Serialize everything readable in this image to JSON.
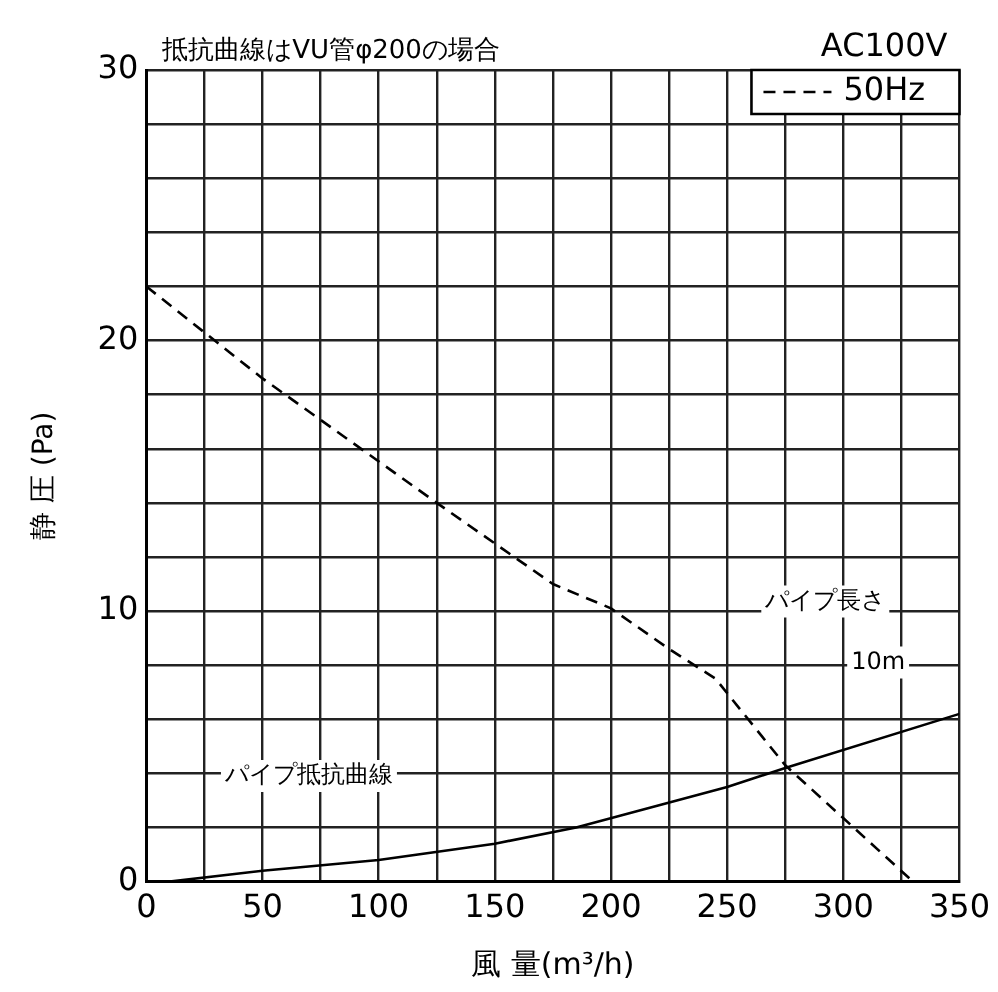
{
  "chart_data": {
    "type": "line",
    "title": "抵抗曲線はVU管φ200の場合",
    "xlabel": "風 量(m³/h)",
    "ylabel": "静 圧 (Pa)",
    "xlim": [
      0,
      350
    ],
    "ylim": [
      0,
      30
    ],
    "xticks": [
      0,
      {
        "value": 25,
        "label": null
      },
      50,
      {
        "value": 75,
        "label": null
      },
      100,
      {
        "value": 125,
        "label": null
      },
      150,
      {
        "value": 175,
        "label": null
      },
      200,
      {
        "value": 225,
        "label": null
      },
      250,
      {
        "value": 275,
        "label": null
      },
      300,
      {
        "value": 325,
        "label": null
      },
      350
    ],
    "yticks": [
      0,
      {
        "value": 2,
        "label": null
      },
      {
        "value": 4,
        "label": null
      },
      {
        "value": 6,
        "label": null
      },
      {
        "value": 8,
        "label": null
      },
      10,
      {
        "value": 12,
        "label": null
      },
      {
        "value": 14,
        "label": null
      },
      {
        "value": 16,
        "label": null
      },
      {
        "value": 18,
        "label": null
      },
      20,
      {
        "value": 22,
        "label": null
      },
      {
        "value": 24,
        "label": null
      },
      {
        "value": 26,
        "label": null
      },
      {
        "value": 28,
        "label": null
      },
      30
    ],
    "grid": true,
    "legend": "top right",
    "marker": "none",
    "series": [
      {
        "name": "50Hz",
        "color": "#000000",
        "line_style": "dashed",
        "x": [
          0,
          50,
          125,
          175,
          200,
          225,
          245,
          275,
          330
        ],
        "values": [
          22,
          18.6,
          14,
          11,
          10.1,
          8.6,
          7.5,
          4.3,
          0
        ]
      },
      {
        "color": "#000000",
        "line_style": "solid",
        "x": [
          10,
          50,
          100,
          150,
          185,
          250,
          275,
          350
        ],
        "values": [
          0,
          0.4,
          0.8,
          1.4,
          2,
          3.5,
          4.2,
          6.2
        ]
      }
    ],
    "annotations": [
      "AC100V",
      "パイプ長さ",
      "10m",
      "パイプ抵抗曲線"
    ]
  }
}
